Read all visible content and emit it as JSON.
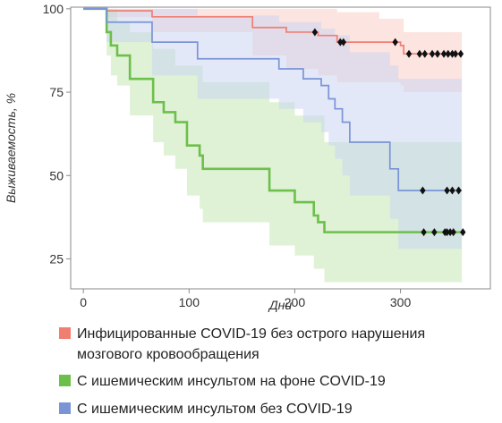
{
  "chart_data": {
    "type": "line",
    "subtype": "kaplan-meier",
    "xlabel": "Дни",
    "ylabel": "Выживаемость, %",
    "xlim": [
      -12,
      385
    ],
    "ylim": [
      16,
      100.5
    ],
    "xticks": [
      0,
      100,
      200,
      300
    ],
    "yticks": [
      25,
      50,
      75,
      100
    ],
    "grid": false,
    "legend_position": "below",
    "series": [
      {
        "name": "Инфицированные COVID-19 без острого нарушения мозгового кровообращения",
        "color": "#f07f72",
        "band_color": "#f9c9c2",
        "line": [
          [
            0,
            100
          ],
          [
            22,
            100
          ],
          [
            22,
            99.4
          ],
          [
            65,
            99.4
          ],
          [
            65,
            97.6
          ],
          [
            160,
            97.6
          ],
          [
            160,
            94.4
          ],
          [
            192,
            94.4
          ],
          [
            192,
            93
          ],
          [
            222,
            93
          ],
          [
            222,
            92
          ],
          [
            240,
            92
          ],
          [
            240,
            90
          ],
          [
            300,
            90
          ],
          [
            300,
            89
          ],
          [
            303,
            89
          ],
          [
            303,
            86.5
          ],
          [
            358,
            86.5
          ]
        ],
        "upper": [
          [
            22,
            100
          ],
          [
            240,
            100
          ],
          [
            240,
            99
          ],
          [
            280,
            99
          ],
          [
            280,
            97
          ],
          [
            303,
            97
          ],
          [
            303,
            93
          ],
          [
            358,
            93
          ]
        ],
        "lower": [
          [
            22,
            97.5
          ],
          [
            65,
            97.5
          ],
          [
            65,
            93
          ],
          [
            160,
            93
          ],
          [
            160,
            86
          ],
          [
            192,
            86
          ],
          [
            192,
            82
          ],
          [
            222,
            82
          ],
          [
            222,
            80
          ],
          [
            240,
            80
          ],
          [
            240,
            78
          ],
          [
            300,
            78
          ],
          [
            300,
            77
          ],
          [
            303,
            77
          ],
          [
            303,
            75
          ],
          [
            358,
            75
          ]
        ],
        "censored_x": [
          219,
          243,
          246,
          295,
          308,
          318,
          323,
          330,
          335,
          341,
          345,
          349,
          352,
          357
        ]
      },
      {
        "name": "С ишемическим инсультом на фоне COVID-19",
        "color": "#6dbf4b",
        "band_color": "#bfe5ae",
        "line": [
          [
            0,
            100
          ],
          [
            22,
            100
          ],
          [
            22,
            93
          ],
          [
            26,
            93
          ],
          [
            26,
            89
          ],
          [
            32,
            89
          ],
          [
            32,
            86
          ],
          [
            44,
            86
          ],
          [
            44,
            79
          ],
          [
            66,
            79
          ],
          [
            66,
            72
          ],
          [
            76,
            72
          ],
          [
            76,
            69
          ],
          [
            87,
            69
          ],
          [
            87,
            66
          ],
          [
            98,
            66
          ],
          [
            98,
            59
          ],
          [
            110,
            59
          ],
          [
            110,
            56
          ],
          [
            113,
            56
          ],
          [
            113,
            52
          ],
          [
            176,
            52
          ],
          [
            176,
            45.5
          ],
          [
            200,
            45.5
          ],
          [
            200,
            42
          ],
          [
            218,
            42
          ],
          [
            218,
            38
          ],
          [
            222,
            38
          ],
          [
            222,
            36
          ],
          [
            228,
            36
          ],
          [
            228,
            33
          ],
          [
            358,
            33
          ]
        ],
        "upper": [
          [
            22,
            100
          ],
          [
            32,
            100
          ],
          [
            32,
            96
          ],
          [
            44,
            96
          ],
          [
            44,
            93
          ],
          [
            66,
            93
          ],
          [
            66,
            88
          ],
          [
            87,
            88
          ],
          [
            87,
            83
          ],
          [
            113,
            83
          ],
          [
            113,
            78
          ],
          [
            176,
            78
          ],
          [
            176,
            72
          ],
          [
            200,
            72
          ],
          [
            200,
            68
          ],
          [
            228,
            68
          ],
          [
            228,
            60
          ],
          [
            358,
            60
          ]
        ],
        "lower": [
          [
            22,
            86
          ],
          [
            26,
            86
          ],
          [
            26,
            80
          ],
          [
            32,
            80
          ],
          [
            32,
            77
          ],
          [
            44,
            77
          ],
          [
            44,
            68
          ],
          [
            66,
            68
          ],
          [
            66,
            60
          ],
          [
            76,
            60
          ],
          [
            76,
            56
          ],
          [
            87,
            56
          ],
          [
            87,
            52
          ],
          [
            98,
            52
          ],
          [
            98,
            44
          ],
          [
            110,
            44
          ],
          [
            110,
            40
          ],
          [
            113,
            40
          ],
          [
            113,
            36
          ],
          [
            176,
            36
          ],
          [
            176,
            29
          ],
          [
            200,
            29
          ],
          [
            200,
            26
          ],
          [
            218,
            26
          ],
          [
            218,
            22
          ],
          [
            228,
            22
          ],
          [
            228,
            18
          ],
          [
            358,
            18
          ]
        ],
        "censored_x": [
          322,
          332,
          342,
          344,
          347,
          350,
          359
        ]
      },
      {
        "name": "С ишемическим инсультом без COVID-19",
        "color": "#7a94d6",
        "band_color": "#c8d2f1",
        "line": [
          [
            0,
            100
          ],
          [
            22,
            100
          ],
          [
            22,
            96
          ],
          [
            65,
            96
          ],
          [
            65,
            90
          ],
          [
            108,
            90
          ],
          [
            108,
            85
          ],
          [
            185,
            85
          ],
          [
            185,
            82
          ],
          [
            208,
            82
          ],
          [
            208,
            79
          ],
          [
            225,
            79
          ],
          [
            225,
            77
          ],
          [
            232,
            77
          ],
          [
            232,
            73
          ],
          [
            238,
            73
          ],
          [
            238,
            70
          ],
          [
            245,
            70
          ],
          [
            245,
            66
          ],
          [
            252,
            66
          ],
          [
            252,
            60
          ],
          [
            290,
            60
          ],
          [
            290,
            52
          ],
          [
            298,
            52
          ],
          [
            298,
            45.5
          ],
          [
            358,
            45.5
          ]
        ],
        "upper": [
          [
            22,
            100
          ],
          [
            108,
            100
          ],
          [
            108,
            98
          ],
          [
            185,
            98
          ],
          [
            185,
            96
          ],
          [
            225,
            96
          ],
          [
            225,
            94
          ],
          [
            238,
            94
          ],
          [
            238,
            92
          ],
          [
            252,
            92
          ],
          [
            252,
            87
          ],
          [
            290,
            87
          ],
          [
            290,
            83
          ],
          [
            298,
            83
          ],
          [
            298,
            79
          ],
          [
            358,
            79
          ]
        ],
        "lower": [
          [
            22,
            90
          ],
          [
            65,
            90
          ],
          [
            65,
            80
          ],
          [
            108,
            80
          ],
          [
            108,
            73
          ],
          [
            185,
            73
          ],
          [
            185,
            70
          ],
          [
            208,
            70
          ],
          [
            208,
            66
          ],
          [
            225,
            66
          ],
          [
            225,
            63
          ],
          [
            232,
            63
          ],
          [
            232,
            59
          ],
          [
            238,
            59
          ],
          [
            238,
            55
          ],
          [
            245,
            55
          ],
          [
            245,
            50
          ],
          [
            252,
            50
          ],
          [
            252,
            44
          ],
          [
            290,
            44
          ],
          [
            290,
            37
          ],
          [
            298,
            37
          ],
          [
            298,
            28
          ],
          [
            358,
            28
          ]
        ],
        "censored_x": [
          321,
          344,
          349,
          355
        ]
      }
    ]
  }
}
